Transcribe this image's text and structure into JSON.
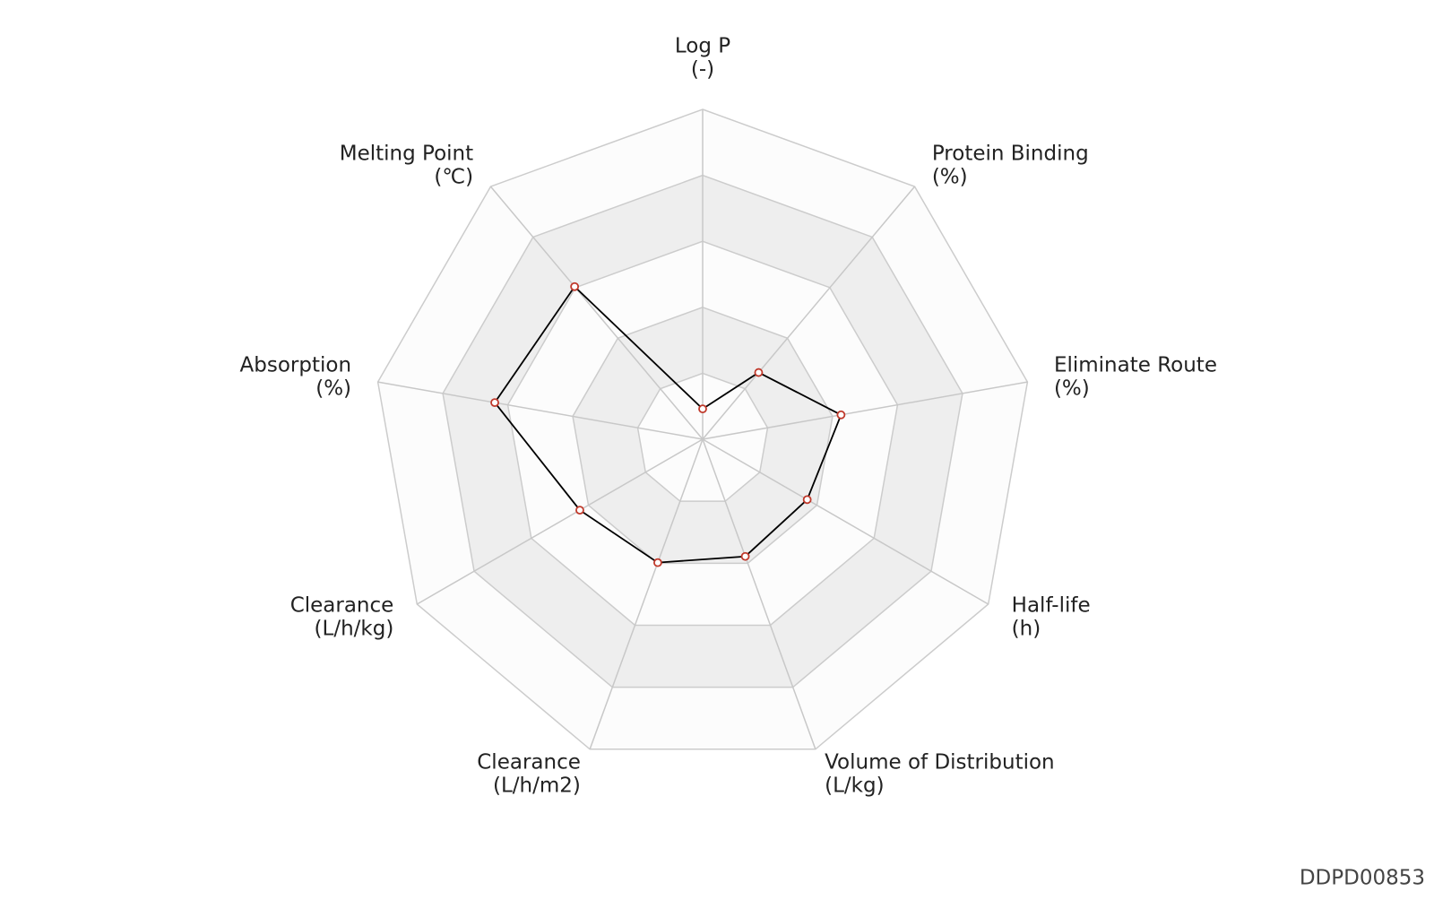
{
  "chart_data": {
    "type": "radar",
    "categories": [
      "Log P",
      "Protein Binding",
      "Eliminate Route",
      "Half-life",
      "Volume of Distribution",
      "Clearance",
      "Clearance",
      "Absorption",
      "Melting Point"
    ],
    "units": [
      "(-)",
      "(%)",
      "(%)",
      "(h)",
      "(L/kg)",
      "(L/h/m2)",
      "(L/h/kg)",
      "(%)",
      "(℃)"
    ],
    "values": [
      0.46,
      1.32,
      2.13,
      1.83,
      1.89,
      1.99,
      2.15,
      3.2,
      3.02
    ],
    "rlim": [
      0,
      5
    ],
    "rticks": [
      1,
      2,
      3,
      4,
      5
    ],
    "line_color": "#000000",
    "marker_color": "#c0392b",
    "footer": "DDPD00853"
  }
}
